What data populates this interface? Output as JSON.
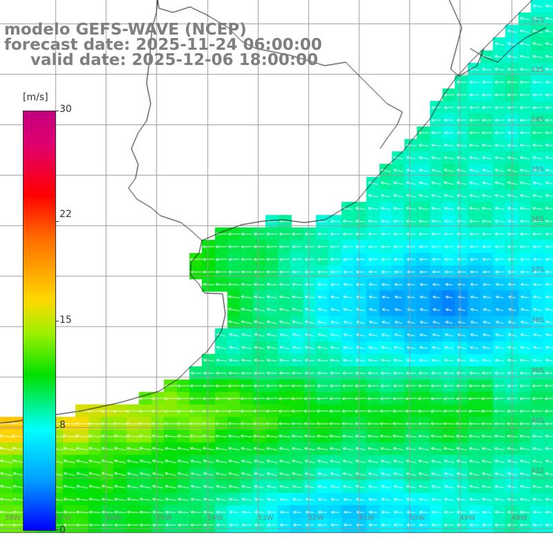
{
  "title": {
    "model": "modelo GEFS-WAVE (NCEP)",
    "forecast": "forecast date: 2025-11-24 06:00:00",
    "valid": "valid date: 2025-12-06 18:00:00"
  },
  "colorbar": {
    "unit": "[m/s]",
    "ticks": [
      "30",
      "22",
      "15",
      "8",
      "0"
    ],
    "tick_values": [
      30,
      22,
      15,
      8,
      0
    ],
    "colors": [
      "#0000ff",
      "#00a0ff",
      "#00ffff",
      "#00e000",
      "#9df000",
      "#ffd800",
      "#ff6a00",
      "#ff0000",
      "#e0006e",
      "#c2007f"
    ]
  },
  "axes": {
    "lat_labels": [
      "32S",
      "33S",
      "34S",
      "35S",
      "36S",
      "37S",
      "38S",
      "39S",
      "40S",
      "41S"
    ],
    "lon_labels": [
      "58W",
      "57W",
      "56W",
      "55W",
      "54W",
      "53W",
      "52W",
      "51W",
      "50W",
      "49W",
      "48W"
    ]
  }
}
